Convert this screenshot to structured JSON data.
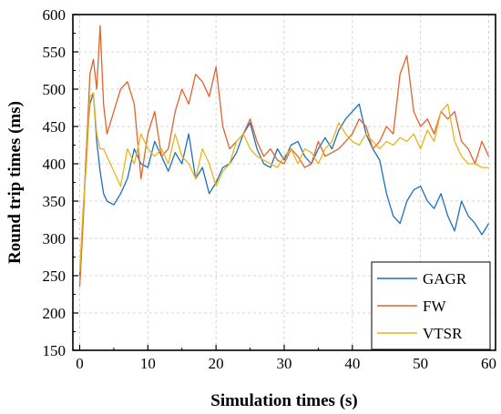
{
  "chart_data": {
    "type": "line",
    "xlabel": "Simulation times (s)",
    "ylabel": "Round trip times (ms)",
    "xlim": [
      -1,
      61
    ],
    "ylim": [
      150,
      600
    ],
    "xticks": [
      0,
      10,
      20,
      30,
      40,
      50,
      60
    ],
    "yticks": [
      150,
      200,
      250,
      300,
      350,
      400,
      450,
      500,
      550,
      600
    ],
    "grid": true,
    "legend_position": "bottom-right",
    "series": [
      {
        "name": "GAGR",
        "color": "#1f6fbf",
        "x": [
          0,
          0.5,
          1,
          1.5,
          2,
          2.5,
          3,
          3.5,
          4,
          5,
          6,
          7,
          8,
          9,
          10,
          11,
          12,
          13,
          14,
          15,
          16,
          17,
          18,
          19,
          20,
          21,
          22,
          23,
          24,
          25,
          26,
          27,
          28,
          29,
          30,
          31,
          32,
          33,
          34,
          35,
          36,
          37,
          38,
          39,
          40,
          41,
          42,
          43,
          44,
          45,
          46,
          47,
          48,
          49,
          50,
          51,
          52,
          53,
          54,
          55,
          56,
          57,
          58,
          59,
          60
        ],
        "values": [
          250,
          330,
          420,
          480,
          495,
          430,
          390,
          360,
          350,
          345,
          360,
          380,
          420,
          400,
          395,
          430,
          410,
          390,
          415,
          400,
          440,
          380,
          395,
          360,
          375,
          395,
          400,
          415,
          440,
          455,
          420,
          400,
          395,
          420,
          405,
          425,
          430,
          410,
          400,
          420,
          435,
          420,
          445,
          460,
          470,
          480,
          440,
          420,
          405,
          360,
          330,
          320,
          350,
          365,
          370,
          350,
          340,
          360,
          330,
          310,
          350,
          330,
          320,
          305,
          320
        ]
      },
      {
        "name": "FW",
        "color": "#e0642c",
        "x": [
          0,
          0.5,
          1,
          1.5,
          2,
          2.5,
          3,
          3.5,
          4,
          5,
          6,
          7,
          8,
          9,
          10,
          11,
          12,
          13,
          14,
          15,
          16,
          17,
          18,
          19,
          20,
          21,
          22,
          23,
          24,
          25,
          26,
          27,
          28,
          29,
          30,
          31,
          32,
          33,
          34,
          35,
          36,
          37,
          38,
          39,
          40,
          41,
          42,
          43,
          44,
          45,
          46,
          47,
          48,
          49,
          50,
          51,
          52,
          53,
          54,
          55,
          56,
          57,
          58,
          59,
          60
        ],
        "values": [
          235,
          320,
          420,
          520,
          540,
          500,
          585,
          480,
          440,
          470,
          500,
          510,
          480,
          380,
          440,
          470,
          410,
          420,
          470,
          500,
          480,
          520,
          510,
          490,
          530,
          450,
          420,
          430,
          440,
          460,
          430,
          410,
          420,
          405,
          400,
          420,
          410,
          395,
          400,
          430,
          410,
          415,
          420,
          430,
          440,
          460,
          450,
          420,
          430,
          450,
          440,
          520,
          545,
          470,
          450,
          460,
          440,
          470,
          460,
          470,
          430,
          420,
          400,
          430,
          410
        ]
      },
      {
        "name": "VTSR",
        "color": "#e8b51d",
        "x": [
          0,
          0.5,
          1,
          1.5,
          2,
          2.5,
          3,
          3.5,
          4,
          5,
          6,
          7,
          8,
          9,
          10,
          11,
          12,
          13,
          14,
          15,
          16,
          17,
          18,
          19,
          20,
          21,
          22,
          23,
          24,
          25,
          26,
          27,
          28,
          29,
          30,
          31,
          32,
          33,
          34,
          35,
          36,
          37,
          38,
          39,
          40,
          41,
          42,
          43,
          44,
          45,
          46,
          47,
          48,
          49,
          50,
          51,
          52,
          53,
          54,
          55,
          56,
          57,
          58,
          59,
          60
        ],
        "values": [
          255,
          340,
          400,
          490,
          495,
          440,
          420,
          420,
          410,
          390,
          370,
          420,
          400,
          440,
          420,
          410,
          420,
          400,
          440,
          410,
          400,
          380,
          420,
          400,
          370,
          390,
          400,
          430,
          440,
          420,
          410,
          405,
          400,
          395,
          410,
          420,
          400,
          420,
          415,
          400,
          420,
          430,
          455,
          440,
          430,
          425,
          440,
          430,
          420,
          430,
          425,
          435,
          430,
          440,
          420,
          445,
          430,
          470,
          480,
          430,
          410,
          400,
          400,
          395,
          395
        ]
      }
    ]
  }
}
